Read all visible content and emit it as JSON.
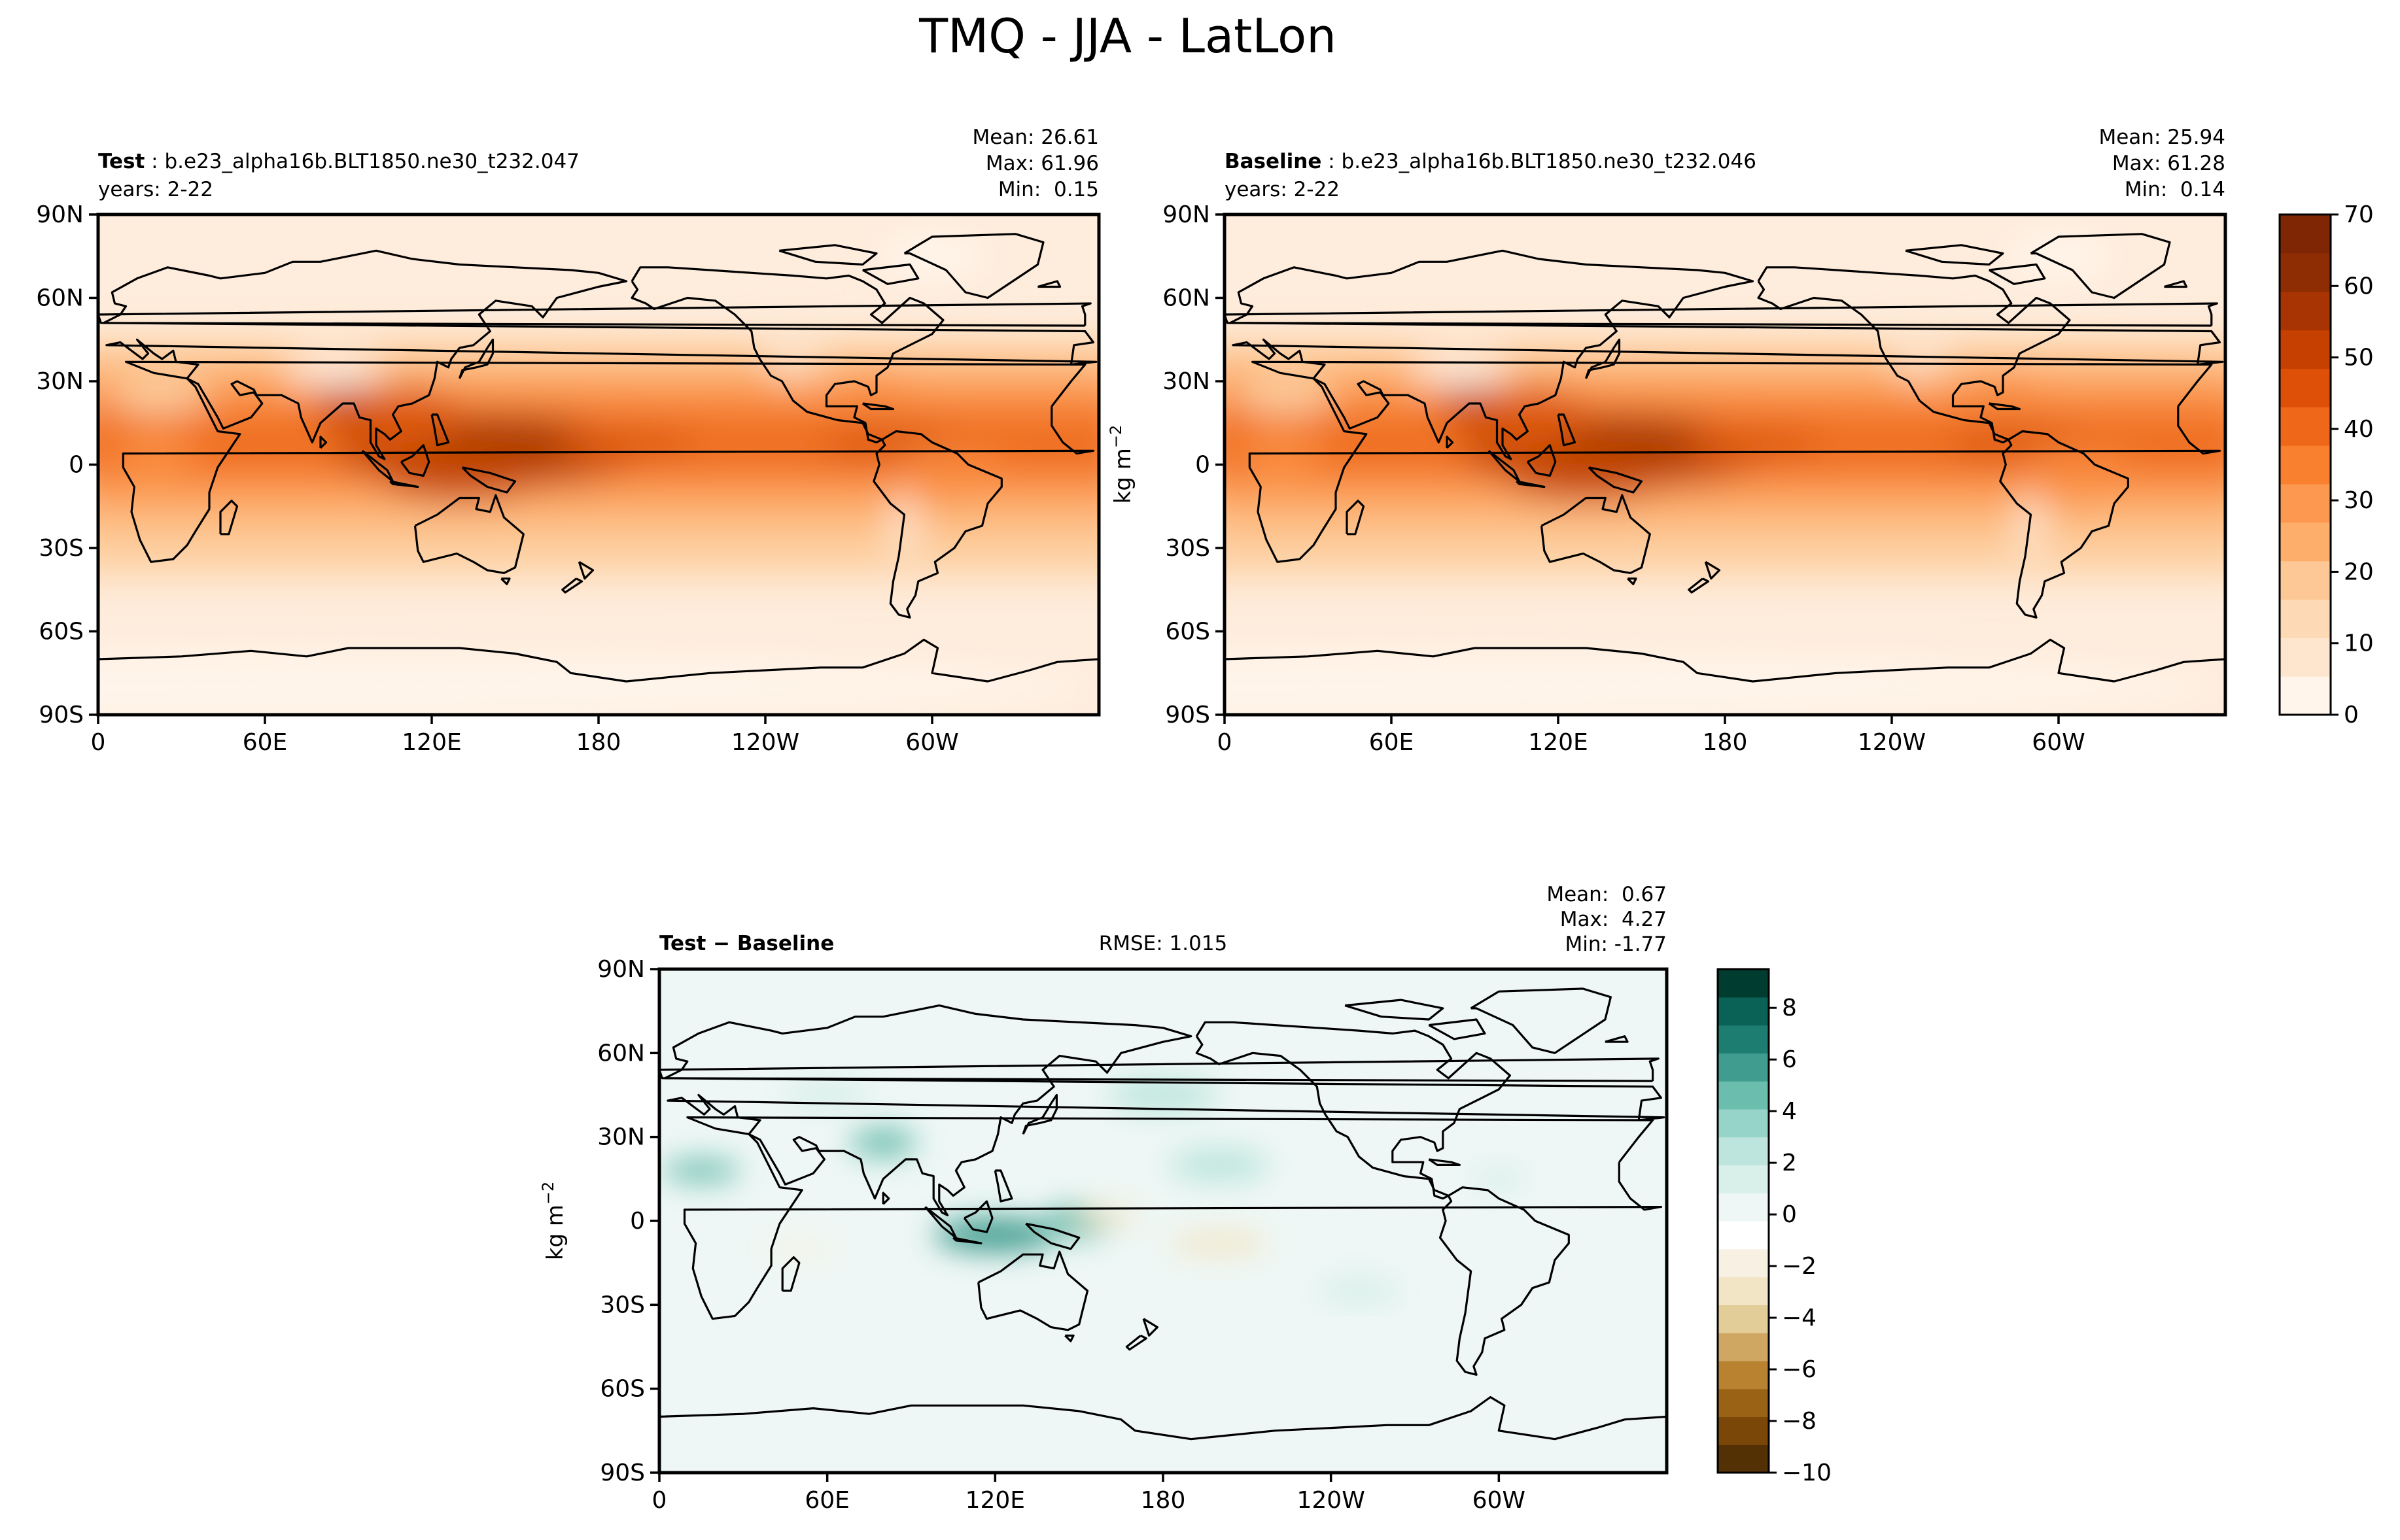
{
  "figure": {
    "title": "TMQ - JJA - LatLon"
  },
  "axes": {
    "lat_ticks": [
      "90N",
      "60N",
      "30N",
      "0",
      "30S",
      "60S",
      "90S"
    ],
    "lon_ticks": [
      "0",
      "60E",
      "120E",
      "180",
      "120W",
      "60W"
    ],
    "lon_tick_values": [
      0,
      60,
      120,
      180,
      240,
      300
    ],
    "lat_tick_values": [
      90,
      60,
      30,
      0,
      -30,
      -60,
      -90
    ]
  },
  "panels": {
    "test": {
      "label_bold": "Test",
      "label_rest": " : b.e23_alpha16b.BLT1850.ne30_t232.047",
      "years": "years: 2-22",
      "stats": [
        "Mean: 26.61",
        "Max: 61.96",
        "Min:  0.15"
      ],
      "mean": 26.61,
      "max": 61.96,
      "min": 0.15
    },
    "baseline": {
      "label_bold": "Baseline",
      "label_rest": " : b.e23_alpha16b.BLT1850.ne30_t232.046",
      "years": "years: 2-22",
      "stats": [
        "Mean: 25.94",
        "Max: 61.28",
        "Min:  0.14"
      ],
      "mean": 25.94,
      "max": 61.28,
      "min": 0.14
    },
    "diff": {
      "label": "Test − Baseline",
      "rmse": "RMSE: 1.015",
      "stats": [
        "Mean:  0.67",
        "Max:  4.27",
        "Min: -1.77"
      ],
      "mean": 0.67,
      "max": 4.27,
      "min": -1.77
    }
  },
  "colorbars": {
    "top": {
      "units": "kg m",
      "units_sup": "−2",
      "ticks": [
        "0",
        "10",
        "20",
        "30",
        "40",
        "50",
        "60",
        "70"
      ],
      "range": [
        0,
        70
      ],
      "colors": [
        "#fff5eb",
        "#fee6ce",
        "#fdd9b5",
        "#fdc895",
        "#fdae6b",
        "#fd9850",
        "#f9802e",
        "#ef6718",
        "#de5008",
        "#c64002",
        "#a83403",
        "#8e2d03",
        "#7f2704"
      ]
    },
    "bottom": {
      "units": "kg m",
      "units_sup": "−2",
      "ticks": [
        "−10",
        "−8",
        "−6",
        "−4",
        "−2",
        "0",
        "2",
        "4",
        "6",
        "8"
      ],
      "range": [
        -10,
        9.5
      ],
      "colors": [
        "#543005",
        "#7a4709",
        "#9a6214",
        "#b98230",
        "#cfa762",
        "#e2cc97",
        "#f2e5c6",
        "#f8f1e3",
        "#ffffff",
        "#eef7f5",
        "#d8efea",
        "#bde5dd",
        "#96d3c8",
        "#6bbdad",
        "#3f9c8f",
        "#1d7d71",
        "#0a6155",
        "#003c30"
      ]
    }
  },
  "map_colors": {
    "land_outline": "#000000",
    "tmq_levels": [
      "#fff5eb",
      "#feecdc",
      "#fde0c3",
      "#fdd0a2",
      "#fdb97d",
      "#fda25c",
      "#f98a3c",
      "#ef6f20",
      "#de5a0c",
      "#c84a04",
      "#ad3c03",
      "#8c2f04",
      "#7f2704"
    ],
    "diff_background": "#eef7f5"
  }
}
